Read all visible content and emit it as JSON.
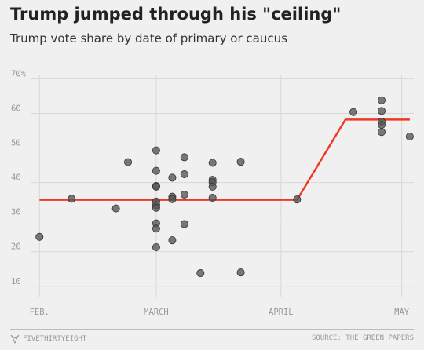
{
  "header": {
    "title": "Trump jumped through his \"ceiling\"",
    "subtitle": "Trump vote share by date of primary or caucus"
  },
  "footer": {
    "brand": "FIVETHIRTYEIGHT",
    "source": "SOURCE: THE GREEN PAPERS"
  },
  "colors": {
    "background": "#f0f0f0",
    "grid": "#d8d8d8",
    "point_fill": "#555555",
    "trend_line": "#ee3a24"
  },
  "icons": {
    "brand": "fox-icon"
  },
  "chart_data": {
    "type": "scatter",
    "title": "Trump jumped through his \"ceiling\"",
    "subtitle": "Trump vote share by date of primary or caucus",
    "xlabel": "",
    "ylabel": "",
    "x_ticks": [
      {
        "date": "2016-02-01",
        "label": "FEB."
      },
      {
        "date": "2016-03-01",
        "label": "MARCH"
      },
      {
        "date": "2016-04-01",
        "label": "APRIL"
      },
      {
        "date": "2016-05-01",
        "label": "MAY"
      }
    ],
    "y_ticks": [
      {
        "value": 10,
        "label": "10"
      },
      {
        "value": 20,
        "label": "20"
      },
      {
        "value": 30,
        "label": "30"
      },
      {
        "value": 40,
        "label": "40"
      },
      {
        "value": 50,
        "label": "50"
      },
      {
        "value": 60,
        "label": "60"
      },
      {
        "value": 70,
        "label": "70%"
      }
    ],
    "ylim": [
      7,
      71
    ],
    "xlim": [
      "2016-01-30",
      "2016-05-04"
    ],
    "grid": true,
    "series": [
      {
        "kind": "points",
        "points": [
          {
            "x": "2016-02-01",
            "y": 24.3
          },
          {
            "x": "2016-02-09",
            "y": 35.3
          },
          {
            "x": "2016-02-20",
            "y": 32.5
          },
          {
            "x": "2016-02-23",
            "y": 45.9
          },
          {
            "x": "2016-03-01",
            "y": 49.3
          },
          {
            "x": "2016-03-01",
            "y": 43.4
          },
          {
            "x": "2016-03-01",
            "y": 39.0
          },
          {
            "x": "2016-03-01",
            "y": 38.8
          },
          {
            "x": "2016-03-01",
            "y": 34.5
          },
          {
            "x": "2016-03-01",
            "y": 33.5
          },
          {
            "x": "2016-03-01",
            "y": 32.7
          },
          {
            "x": "2016-03-01",
            "y": 28.2
          },
          {
            "x": "2016-03-01",
            "y": 26.7
          },
          {
            "x": "2016-03-01",
            "y": 21.3
          },
          {
            "x": "2016-03-05",
            "y": 41.4
          },
          {
            "x": "2016-03-05",
            "y": 35.9
          },
          {
            "x": "2016-03-05",
            "y": 35.2
          },
          {
            "x": "2016-03-05",
            "y": 23.3
          },
          {
            "x": "2016-03-08",
            "y": 47.3
          },
          {
            "x": "2016-03-08",
            "y": 42.4
          },
          {
            "x": "2016-03-08",
            "y": 36.5
          },
          {
            "x": "2016-03-08",
            "y": 28.0
          },
          {
            "x": "2016-03-12",
            "y": 13.8
          },
          {
            "x": "2016-03-15",
            "y": 45.7
          },
          {
            "x": "2016-03-15",
            "y": 40.8
          },
          {
            "x": "2016-03-15",
            "y": 40.1
          },
          {
            "x": "2016-03-15",
            "y": 38.8
          },
          {
            "x": "2016-03-15",
            "y": 35.6
          },
          {
            "x": "2016-03-22",
            "y": 46.0
          },
          {
            "x": "2016-03-22",
            "y": 14.0
          },
          {
            "x": "2016-04-05",
            "y": 35.1
          },
          {
            "x": "2016-04-19",
            "y": 60.4
          },
          {
            "x": "2016-04-26",
            "y": 63.8
          },
          {
            "x": "2016-04-26",
            "y": 60.7
          },
          {
            "x": "2016-04-26",
            "y": 57.6
          },
          {
            "x": "2016-04-26",
            "y": 56.7
          },
          {
            "x": "2016-04-26",
            "y": 54.6
          },
          {
            "x": "2016-05-03",
            "y": 53.3
          }
        ]
      },
      {
        "kind": "trend",
        "points": [
          {
            "x": "2016-02-01",
            "y": 35.0
          },
          {
            "x": "2016-04-05",
            "y": 35.0
          },
          {
            "x": "2016-04-17",
            "y": 58.2
          },
          {
            "x": "2016-05-03",
            "y": 58.2
          }
        ]
      }
    ]
  }
}
